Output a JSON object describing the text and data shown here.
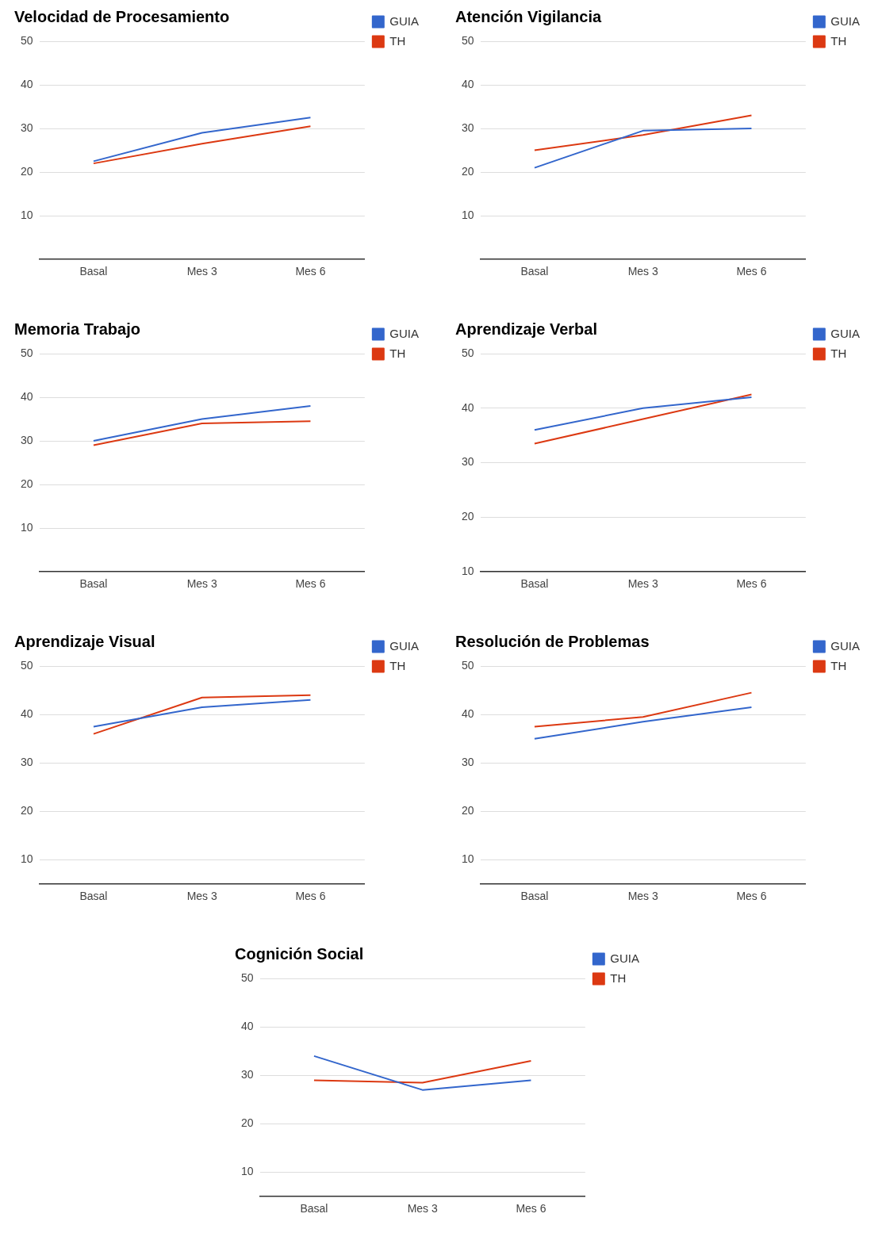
{
  "chart_data": [
    {
      "type": "line",
      "title": "Velocidad de Procesamiento",
      "categories": [
        "Basal",
        "Mes 3",
        "Mes 6"
      ],
      "series": [
        {
          "name": "GUIA",
          "color": "#3366cc",
          "values": [
            22.5,
            29,
            32.5
          ]
        },
        {
          "name": "TH",
          "color": "#dc3912",
          "values": [
            22,
            26.5,
            30.5
          ]
        }
      ],
      "ylim": [
        0,
        50
      ],
      "yticks": [
        10,
        20,
        30,
        40,
        50
      ],
      "grid": "y",
      "legend": "top right",
      "marker": "none"
    },
    {
      "type": "line",
      "title": "Atención Vigilancia",
      "categories": [
        "Basal",
        "Mes 3",
        "Mes 6"
      ],
      "series": [
        {
          "name": "GUIA",
          "color": "#3366cc",
          "values": [
            21,
            29.5,
            30
          ]
        },
        {
          "name": "TH",
          "color": "#dc3912",
          "values": [
            25,
            28.5,
            33
          ]
        }
      ],
      "ylim": [
        0,
        50
      ],
      "yticks": [
        10,
        20,
        30,
        40,
        50
      ],
      "grid": "y",
      "legend": "top right",
      "marker": "none"
    },
    {
      "type": "line",
      "title": "Memoria Trabajo",
      "categories": [
        "Basal",
        "Mes 3",
        "Mes 6"
      ],
      "series": [
        {
          "name": "GUIA",
          "color": "#3366cc",
          "values": [
            30,
            35,
            38
          ]
        },
        {
          "name": "TH",
          "color": "#dc3912",
          "values": [
            29,
            34,
            34.5
          ]
        }
      ],
      "ylim": [
        0,
        50
      ],
      "yticks": [
        10,
        20,
        30,
        40,
        50
      ],
      "grid": "y",
      "legend": "top right",
      "marker": "none"
    },
    {
      "type": "line",
      "title": "Aprendizaje Verbal",
      "categories": [
        "Basal",
        "Mes 3",
        "Mes 6"
      ],
      "series": [
        {
          "name": "GUIA",
          "color": "#3366cc",
          "values": [
            36,
            40,
            42
          ]
        },
        {
          "name": "TH",
          "color": "#dc3912",
          "values": [
            33.5,
            38,
            42.5
          ]
        }
      ],
      "ylim": [
        10,
        50
      ],
      "yticks": [
        10,
        20,
        30,
        40,
        50
      ],
      "grid": "y",
      "legend": "top right",
      "marker": "none"
    },
    {
      "type": "line",
      "title": "Aprendizaje Visual",
      "categories": [
        "Basal",
        "Mes 3",
        "Mes 6"
      ],
      "series": [
        {
          "name": "GUIA",
          "color": "#3366cc",
          "values": [
            37.5,
            41.5,
            43
          ]
        },
        {
          "name": "TH",
          "color": "#dc3912",
          "values": [
            36,
            43.5,
            44
          ]
        }
      ],
      "ylim": [
        5,
        50
      ],
      "yticks": [
        10,
        20,
        30,
        40,
        50
      ],
      "grid": "y",
      "legend": "top right",
      "marker": "none"
    },
    {
      "type": "line",
      "title": "Resolución de Problemas",
      "categories": [
        "Basal",
        "Mes 3",
        "Mes 6"
      ],
      "series": [
        {
          "name": "GUIA",
          "color": "#3366cc",
          "values": [
            35,
            38.5,
            41.5
          ]
        },
        {
          "name": "TH",
          "color": "#dc3912",
          "values": [
            37.5,
            39.5,
            44.5
          ]
        }
      ],
      "ylim": [
        5,
        50
      ],
      "yticks": [
        10,
        20,
        30,
        40,
        50
      ],
      "grid": "y",
      "legend": "top right",
      "marker": "none"
    },
    {
      "type": "line",
      "title": "Cognición Social",
      "categories": [
        "Basal",
        "Mes 3",
        "Mes 6"
      ],
      "series": [
        {
          "name": "GUIA",
          "color": "#3366cc",
          "values": [
            34,
            27,
            29
          ]
        },
        {
          "name": "TH",
          "color": "#dc3912",
          "values": [
            29,
            28.5,
            33
          ]
        }
      ],
      "ylim": [
        5,
        50
      ],
      "yticks": [
        10,
        20,
        30,
        40,
        50
      ],
      "grid": "y",
      "legend": "top right",
      "marker": "none"
    }
  ]
}
